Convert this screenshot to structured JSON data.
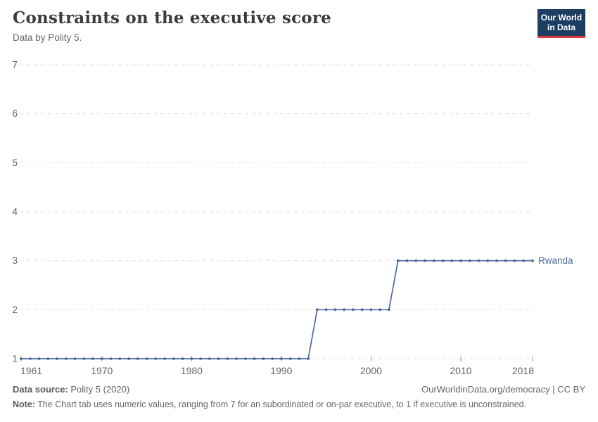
{
  "header": {
    "title": "Constraints on the executive score",
    "subtitle": "Data by Polity 5."
  },
  "logo": {
    "line1": "Our World",
    "line2": "in Data",
    "bg_color": "#1d3d63",
    "accent_color": "#e0373c"
  },
  "chart_data": {
    "type": "line",
    "title": "Constraints on the executive score",
    "xlabel": "",
    "ylabel": "",
    "ylim": [
      1,
      7
    ],
    "xlim": [
      1961,
      2018
    ],
    "grid": true,
    "legend_position": "end-of-line",
    "y_ticks": [
      1,
      2,
      3,
      4,
      5,
      6,
      7
    ],
    "x_ticks": [
      1961,
      1970,
      1980,
      1990,
      2000,
      2010,
      2018
    ],
    "line_color": "#4C6A9C",
    "grid_color": "#e0e0e0",
    "tick_label_color": "#666666",
    "series": [
      {
        "name": "Rwanda",
        "points": [
          [
            1961,
            1
          ],
          [
            1962,
            1
          ],
          [
            1963,
            1
          ],
          [
            1964,
            1
          ],
          [
            1965,
            1
          ],
          [
            1966,
            1
          ],
          [
            1967,
            1
          ],
          [
            1968,
            1
          ],
          [
            1969,
            1
          ],
          [
            1970,
            1
          ],
          [
            1971,
            1
          ],
          [
            1972,
            1
          ],
          [
            1973,
            1
          ],
          [
            1974,
            1
          ],
          [
            1975,
            1
          ],
          [
            1976,
            1
          ],
          [
            1977,
            1
          ],
          [
            1978,
            1
          ],
          [
            1979,
            1
          ],
          [
            1980,
            1
          ],
          [
            1981,
            1
          ],
          [
            1982,
            1
          ],
          [
            1983,
            1
          ],
          [
            1984,
            1
          ],
          [
            1985,
            1
          ],
          [
            1986,
            1
          ],
          [
            1987,
            1
          ],
          [
            1988,
            1
          ],
          [
            1989,
            1
          ],
          [
            1990,
            1
          ],
          [
            1991,
            1
          ],
          [
            1992,
            1
          ],
          [
            1993,
            1
          ],
          [
            1994,
            2
          ],
          [
            1995,
            2
          ],
          [
            1996,
            2
          ],
          [
            1997,
            2
          ],
          [
            1998,
            2
          ],
          [
            1999,
            2
          ],
          [
            2000,
            2
          ],
          [
            2001,
            2
          ],
          [
            2002,
            2
          ],
          [
            2003,
            3
          ],
          [
            2004,
            3
          ],
          [
            2005,
            3
          ],
          [
            2006,
            3
          ],
          [
            2007,
            3
          ],
          [
            2008,
            3
          ],
          [
            2009,
            3
          ],
          [
            2010,
            3
          ],
          [
            2011,
            3
          ],
          [
            2012,
            3
          ],
          [
            2013,
            3
          ],
          [
            2014,
            3
          ],
          [
            2015,
            3
          ],
          [
            2016,
            3
          ],
          [
            2017,
            3
          ],
          [
            2018,
            3
          ]
        ]
      }
    ]
  },
  "footer": {
    "source_label": "Data source:",
    "source_value": "Polity 5 (2020)",
    "note_label": "Note:",
    "note_value": "The Chart tab uses numeric values, ranging from 7 for an subordinated or on-par executive, to 1 if executive is unconstrained.",
    "link": "OurWorldinData.org/democracy | CC BY"
  }
}
